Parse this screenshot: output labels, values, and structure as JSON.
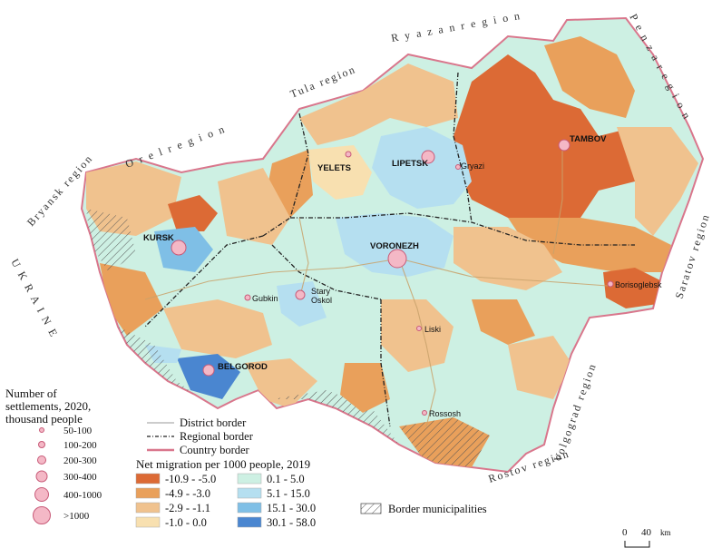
{
  "neighbours": [
    {
      "id": "ryazan",
      "text": "R y a z a n   r e g i o n"
    },
    {
      "id": "penza",
      "text": "P e n z a   r e g i o n"
    },
    {
      "id": "tula",
      "text": "Tula region"
    },
    {
      "id": "orel",
      "text": "O r e l   r e g i o n"
    },
    {
      "id": "bryansk",
      "text": "Bryansk region"
    },
    {
      "id": "saratov",
      "text": "Saratov region"
    },
    {
      "id": "volgograd",
      "text": "Volgograd region"
    },
    {
      "id": "rostov",
      "text": "Rostov region"
    },
    {
      "id": "ukraine",
      "text": "U K R A I N E"
    }
  ],
  "cities": {
    "tambov": "TAMBOV",
    "lipetsk": "LIPETSK",
    "yelets": "YELETS",
    "gryazi": "Gryazi",
    "kursk": "KURSK",
    "voronezh": "VORONEZH",
    "gubkin": "Gubkin",
    "stary_oskol": [
      "Stary",
      "Oskol"
    ],
    "borisoglebsk": "Borisoglebsk",
    "liski": "Liski",
    "belgorod": "BELGOROD",
    "rossosh": "Rossosh"
  },
  "legend": {
    "size_title": [
      "Number of",
      "settlements, 2020,",
      "thousand people"
    ],
    "size_classes": [
      "50-100",
      "100-200",
      "200-300",
      "300-400",
      "400-1000",
      ">1000"
    ],
    "lines": [
      {
        "label": "District border",
        "color": "#9a9a9a"
      },
      {
        "label": "Regional border",
        "color": "#222222"
      },
      {
        "label": "Country border",
        "color": "#d9768c"
      }
    ],
    "migration_title": "Net migration per 1000 people, 2019",
    "migration_classes": [
      {
        "label": "-10.9 - -5.0",
        "color": "#dc6a35"
      },
      {
        "label": "-4.9 - -3.0",
        "color": "#e9a05b"
      },
      {
        "label": "-2.9 - -1.1",
        "color": "#f0c28e"
      },
      {
        "label": "-1.0 - 0.0",
        "color": "#f8e0b0"
      },
      {
        "label": "0.1 - 5.0",
        "color": "#cdf0e3"
      },
      {
        "label": "5.1 - 15.0",
        "color": "#b5dff0"
      },
      {
        "label": "15.1 - 30.0",
        "color": "#7fbfe6"
      },
      {
        "label": "30.1 - 58.0",
        "color": "#4a86d0"
      }
    ],
    "border_municipalities": "Border municipalities",
    "scale_zero": "0",
    "scale_value": "40",
    "scale_unit": "km"
  }
}
